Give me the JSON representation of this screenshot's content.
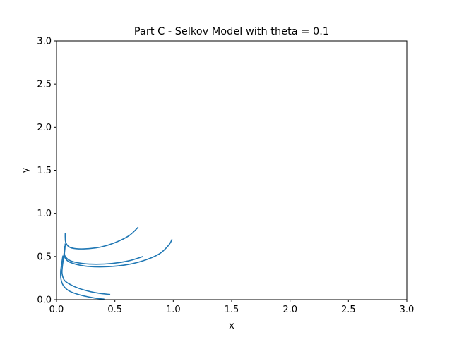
{
  "chart_data": {
    "type": "line",
    "title": "Part C - Selkov Model with theta =  0.1",
    "xlabel": "x",
    "ylabel": "y",
    "xlim": [
      0,
      3
    ],
    "ylim": [
      0,
      3
    ],
    "xticks": [
      "0.0",
      "0.5",
      "1.0",
      "1.5",
      "2.0",
      "2.5",
      "3.0"
    ],
    "yticks": [
      "0.0",
      "0.5",
      "1.0",
      "1.5",
      "2.0",
      "2.5",
      "3.0"
    ],
    "grid": false,
    "line_color": "#1f77b4",
    "series": [
      {
        "points": [
          [
            0.7,
            0.84
          ],
          [
            0.62,
            0.74
          ],
          [
            0.5,
            0.66
          ],
          [
            0.38,
            0.61
          ],
          [
            0.26,
            0.59
          ],
          [
            0.17,
            0.59
          ],
          [
            0.11,
            0.61
          ],
          [
            0.08,
            0.66
          ],
          [
            0.075,
            0.72
          ],
          [
            0.075,
            0.77
          ]
        ]
      },
      {
        "points": [
          [
            0.99,
            0.7
          ],
          [
            0.96,
            0.63
          ],
          [
            0.88,
            0.53
          ],
          [
            0.74,
            0.45
          ],
          [
            0.58,
            0.4
          ],
          [
            0.4,
            0.38
          ],
          [
            0.24,
            0.39
          ],
          [
            0.12,
            0.43
          ],
          [
            0.075,
            0.48
          ],
          [
            0.068,
            0.53
          ],
          [
            0.072,
            0.59
          ],
          [
            0.075,
            0.65
          ]
        ]
      },
      {
        "points": [
          [
            0.74,
            0.5
          ],
          [
            0.62,
            0.45
          ],
          [
            0.48,
            0.42
          ],
          [
            0.34,
            0.41
          ],
          [
            0.22,
            0.42
          ],
          [
            0.12,
            0.45
          ],
          [
            0.075,
            0.5
          ],
          [
            0.066,
            0.56
          ],
          [
            0.072,
            0.62
          ]
        ]
      },
      {
        "points": [
          [
            0.46,
            0.06
          ],
          [
            0.36,
            0.075
          ],
          [
            0.24,
            0.11
          ],
          [
            0.14,
            0.16
          ],
          [
            0.07,
            0.22
          ],
          [
            0.048,
            0.3
          ],
          [
            0.05,
            0.38
          ],
          [
            0.058,
            0.46
          ],
          [
            0.065,
            0.54
          ]
        ]
      },
      {
        "points": [
          [
            0.41,
            0.005
          ],
          [
            0.32,
            0.02
          ],
          [
            0.2,
            0.055
          ],
          [
            0.11,
            0.1
          ],
          [
            0.06,
            0.16
          ],
          [
            0.038,
            0.24
          ],
          [
            0.036,
            0.33
          ],
          [
            0.045,
            0.42
          ],
          [
            0.055,
            0.51
          ]
        ]
      }
    ]
  }
}
